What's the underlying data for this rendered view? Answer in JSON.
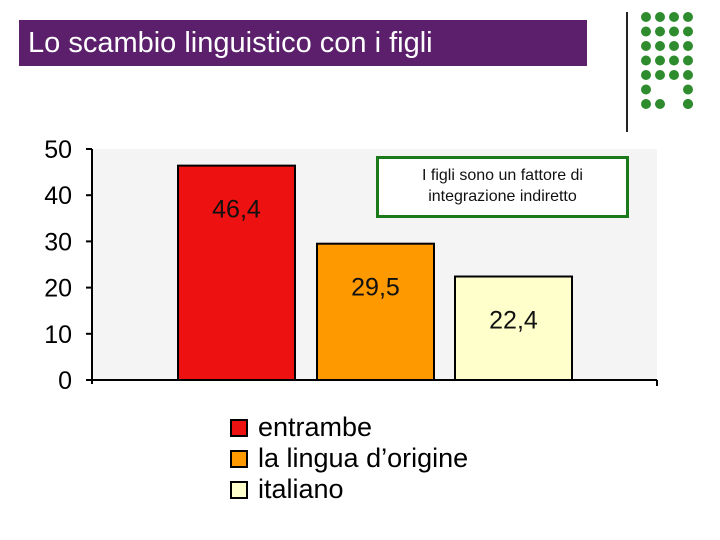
{
  "slide": {
    "title": "Lo scambio linguistico con i figli",
    "callout": "I figli sono un fattore di integrazione indiretto"
  },
  "decoration": {
    "dot_color": "#2e8b2e",
    "title_bg": "#5b1f6b",
    "callout_border": "#1a7a1a"
  },
  "chart_data": {
    "type": "bar",
    "categories": [
      "entrambe",
      "la lingua d’origine",
      "italiano"
    ],
    "values": [
      46.4,
      29.5,
      22.4
    ],
    "value_labels": [
      "46,4",
      "29,5",
      "22,4"
    ],
    "colors": [
      "#ee1111",
      "#ff9900",
      "#ffffcc"
    ],
    "yticks": [
      0,
      10,
      20,
      30,
      40,
      50
    ],
    "ylim": [
      0,
      50
    ],
    "plot_bg": "#f4f4f4",
    "legend": {
      "position": "bottom",
      "entries": [
        "entrambe",
        "la lingua d’origine",
        "italiano"
      ]
    }
  }
}
